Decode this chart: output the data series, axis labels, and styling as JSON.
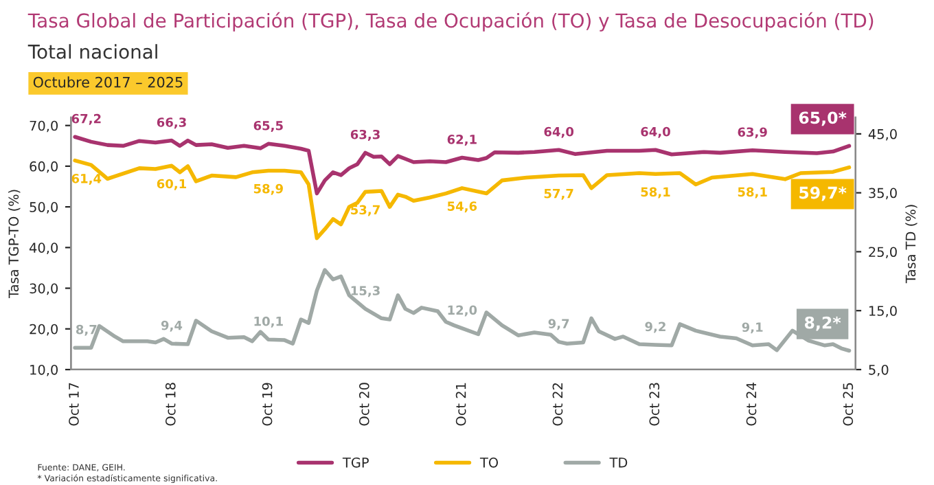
{
  "chart_data": {
    "type": "line",
    "title": "Tasa Global de Participación (TGP), Tasa de Ocupación (TO) y Tasa de Desocupación (TD)",
    "subtitle": "Total nacional",
    "ylabel": "Tasa TGP-TO (%)",
    "y2label": "Tasa TD (%)",
    "annotations": [
      "Octubre 2017 – 2025",
      "Fuente: DANE, GEIH.",
      "* Variación estadísticamente significativa."
    ],
    "xlim": [
      "2017-09-16",
      "2025-10-25"
    ],
    "xticks": [
      {
        "value": "2017-10",
        "label": "Oct 17"
      },
      {
        "value": "2018-10",
        "label": "Oct 18"
      },
      {
        "value": "2019-10",
        "label": "Oct 19"
      },
      {
        "value": "2020-10",
        "label": "Oct 20"
      },
      {
        "value": "2021-10",
        "label": "Oct 21"
      },
      {
        "value": "2022-10",
        "label": "Oct 22"
      },
      {
        "value": "2023-10",
        "label": "Oct 23"
      },
      {
        "value": "2024-10",
        "label": "Oct 24"
      },
      {
        "value": "2025-10",
        "label": "Oct 25"
      }
    ],
    "ylim": [
      10,
      72
    ],
    "yticks": [
      {
        "value": 10,
        "label": "10,0"
      },
      {
        "value": 20,
        "label": "20,0"
      },
      {
        "value": 30,
        "label": "30,0"
      },
      {
        "value": 40,
        "label": "40,0"
      },
      {
        "value": 50,
        "label": "50,0"
      },
      {
        "value": 60,
        "label": "60,0"
      },
      {
        "value": 70,
        "label": "70,0"
      }
    ],
    "y2lim": [
      5,
      47.8
    ],
    "y2ticks": [
      {
        "value": 5,
        "label": "5,0"
      },
      {
        "value": 15,
        "label": "15,0"
      },
      {
        "value": 25,
        "label": "25,0"
      },
      {
        "value": 35,
        "label": "35,0"
      },
      {
        "value": 45,
        "label": "45,0"
      }
    ],
    "grid": false,
    "legend": "bottom",
    "marker": "none",
    "line_style": "solid",
    "series": [
      {
        "name": "TGP",
        "color": "#a8336e",
        "x": [
          "2017-10",
          "2017-12",
          "2018-02",
          "2018-04",
          "2018-06",
          "2018-08",
          "2018-10",
          "2018-11",
          "2018-12",
          "2019-01",
          "2019-03",
          "2019-05",
          "2019-07",
          "2019-09",
          "2019-10",
          "2019-12",
          "2020-02",
          "2020-03",
          "2020-04",
          "2020-05",
          "2020-06",
          "2020-07",
          "2020-08",
          "2020-09",
          "2020-10",
          "2020-11",
          "2020-12",
          "2021-01",
          "2021-02",
          "2021-03",
          "2021-04",
          "2021-06",
          "2021-08",
          "2021-10",
          "2021-12",
          "2022-01",
          "2022-02",
          "2022-05",
          "2022-07",
          "2022-10",
          "2022-12",
          "2023-04",
          "2023-08",
          "2023-10",
          "2023-12",
          "2024-04",
          "2024-06",
          "2024-10",
          "2025-02",
          "2025-06",
          "2025-08",
          "2025-10"
        ],
        "values": [
          67.2,
          66.0,
          65.2,
          65.0,
          66.2,
          65.8,
          66.3,
          65.0,
          66.3,
          65.2,
          65.4,
          64.5,
          65.0,
          64.4,
          65.5,
          65.0,
          64.3,
          63.8,
          53.3,
          56.5,
          58.5,
          57.8,
          59.5,
          60.5,
          63.3,
          62.3,
          62.4,
          60.5,
          62.5,
          61.8,
          61.0,
          61.2,
          61.0,
          62.1,
          61.5,
          62.0,
          63.4,
          63.3,
          63.5,
          64.0,
          63.0,
          63.8,
          63.8,
          64.0,
          62.9,
          63.5,
          63.3,
          63.9,
          63.5,
          63.2,
          63.6,
          65.0
        ],
        "value_labels": [
          "67,2",
          null,
          null,
          null,
          null,
          null,
          "66,3",
          null,
          null,
          null,
          null,
          null,
          null,
          null,
          "65,5",
          null,
          null,
          null,
          null,
          null,
          null,
          null,
          null,
          null,
          "63,3",
          null,
          null,
          null,
          null,
          null,
          null,
          null,
          null,
          "62,1",
          null,
          null,
          null,
          null,
          null,
          "64,0",
          null,
          null,
          null,
          "64,0",
          null,
          null,
          null,
          "63,9",
          null,
          null,
          null,
          "65,0*"
        ]
      },
      {
        "name": "TO",
        "color": "#f5b800",
        "x": [
          "2017-10",
          "2017-12",
          "2018-02",
          "2018-03",
          "2018-06",
          "2018-08",
          "2018-10",
          "2018-11",
          "2018-12",
          "2019-01",
          "2019-03",
          "2019-06",
          "2019-08",
          "2019-10",
          "2019-12",
          "2020-02",
          "2020-03",
          "2020-04",
          "2020-05",
          "2020-06",
          "2020-07",
          "2020-08",
          "2020-09",
          "2020-10",
          "2020-11",
          "2020-12",
          "2021-01",
          "2021-02",
          "2021-03",
          "2021-04",
          "2021-06",
          "2021-08",
          "2021-10",
          "2022-01",
          "2022-03",
          "2022-06",
          "2022-10",
          "2023-01",
          "2023-02",
          "2023-04",
          "2023-08",
          "2023-10",
          "2024-01",
          "2024-03",
          "2024-05",
          "2024-10",
          "2025-02",
          "2025-04",
          "2025-08",
          "2025-10"
        ],
        "values": [
          61.4,
          60.3,
          56.9,
          57.5,
          59.5,
          59.3,
          60.1,
          58.5,
          60.0,
          56.3,
          57.7,
          57.3,
          58.5,
          58.9,
          58.9,
          58.5,
          55.5,
          42.3,
          44.5,
          47.0,
          45.7,
          50.0,
          51.0,
          53.7,
          53.8,
          53.9,
          50.0,
          53.0,
          52.5,
          51.5,
          52.3,
          53.3,
          54.6,
          53.3,
          56.5,
          57.2,
          57.7,
          57.8,
          54.6,
          57.8,
          58.3,
          58.1,
          58.3,
          55.5,
          57.2,
          58.1,
          56.8,
          58.3,
          58.6,
          59.7
        ],
        "value_labels": [
          "61,4",
          null,
          null,
          null,
          null,
          null,
          "60,1",
          null,
          null,
          null,
          null,
          null,
          null,
          "58,9",
          null,
          null,
          null,
          null,
          null,
          null,
          null,
          null,
          null,
          "53,7",
          null,
          null,
          null,
          null,
          null,
          null,
          null,
          null,
          "54,6",
          null,
          null,
          null,
          "57,7",
          null,
          null,
          null,
          null,
          "58,1",
          null,
          null,
          null,
          "58,1",
          null,
          null,
          null,
          "59,7*"
        ]
      },
      {
        "name": "TD",
        "color": "#a0a9a6",
        "axis": "y2",
        "x": [
          "2017-10",
          "2017-12",
          "2018-01",
          "2018-03",
          "2018-04",
          "2018-07",
          "2018-08",
          "2018-09",
          "2018-10",
          "2018-12",
          "2019-01",
          "2019-03",
          "2019-05",
          "2019-07",
          "2019-08",
          "2019-09",
          "2019-10",
          "2019-12",
          "2020-01",
          "2020-02",
          "2020-03",
          "2020-04",
          "2020-05",
          "2020-06",
          "2020-07",
          "2020-08",
          "2020-10",
          "2020-12",
          "2021-01",
          "2021-02",
          "2021-03",
          "2021-04",
          "2021-05",
          "2021-07",
          "2021-08",
          "2021-09",
          "2021-10",
          "2021-12",
          "2022-01",
          "2022-03",
          "2022-05",
          "2022-07",
          "2022-09",
          "2022-10",
          "2022-11",
          "2023-01",
          "2023-02",
          "2023-03",
          "2023-05",
          "2023-06",
          "2023-08",
          "2023-10",
          "2023-12",
          "2024-01",
          "2024-03",
          "2024-06",
          "2024-08",
          "2024-10",
          "2024-12",
          "2025-01",
          "2025-03",
          "2025-05",
          "2025-07",
          "2025-08",
          "2025-09",
          "2025-10"
        ],
        "values": [
          8.7,
          8.7,
          12.4,
          10.6,
          9.8,
          9.8,
          9.6,
          10.2,
          9.4,
          9.3,
          13.3,
          11.5,
          10.4,
          10.5,
          9.8,
          11.4,
          10.1,
          10.0,
          9.4,
          13.5,
          12.9,
          18.4,
          21.9,
          20.3,
          20.8,
          17.6,
          15.3,
          13.7,
          13.5,
          17.6,
          15.3,
          14.6,
          15.5,
          14.9,
          13.1,
          12.5,
          12.0,
          11.0,
          14.7,
          12.5,
          10.8,
          11.3,
          10.9,
          9.7,
          9.4,
          9.6,
          13.7,
          11.5,
          10.2,
          10.6,
          9.3,
          9.2,
          9.1,
          12.7,
          11.6,
          10.6,
          10.3,
          9.1,
          9.3,
          8.3,
          11.6,
          9.9,
          9.1,
          9.3,
          8.6,
          8.2
        ],
        "value_labels": [
          "8,7",
          null,
          null,
          null,
          null,
          null,
          null,
          null,
          "9,4",
          null,
          null,
          null,
          null,
          null,
          null,
          null,
          "10,1",
          null,
          null,
          null,
          null,
          null,
          null,
          null,
          null,
          null,
          "15,3",
          null,
          null,
          null,
          null,
          null,
          null,
          null,
          null,
          null,
          "12,0",
          null,
          null,
          null,
          null,
          null,
          null,
          "9,7",
          null,
          null,
          null,
          null,
          null,
          null,
          null,
          "9,2",
          null,
          null,
          null,
          null,
          null,
          "9,1",
          null,
          null,
          null,
          null,
          null,
          null,
          null,
          "8,2*"
        ]
      }
    ]
  }
}
